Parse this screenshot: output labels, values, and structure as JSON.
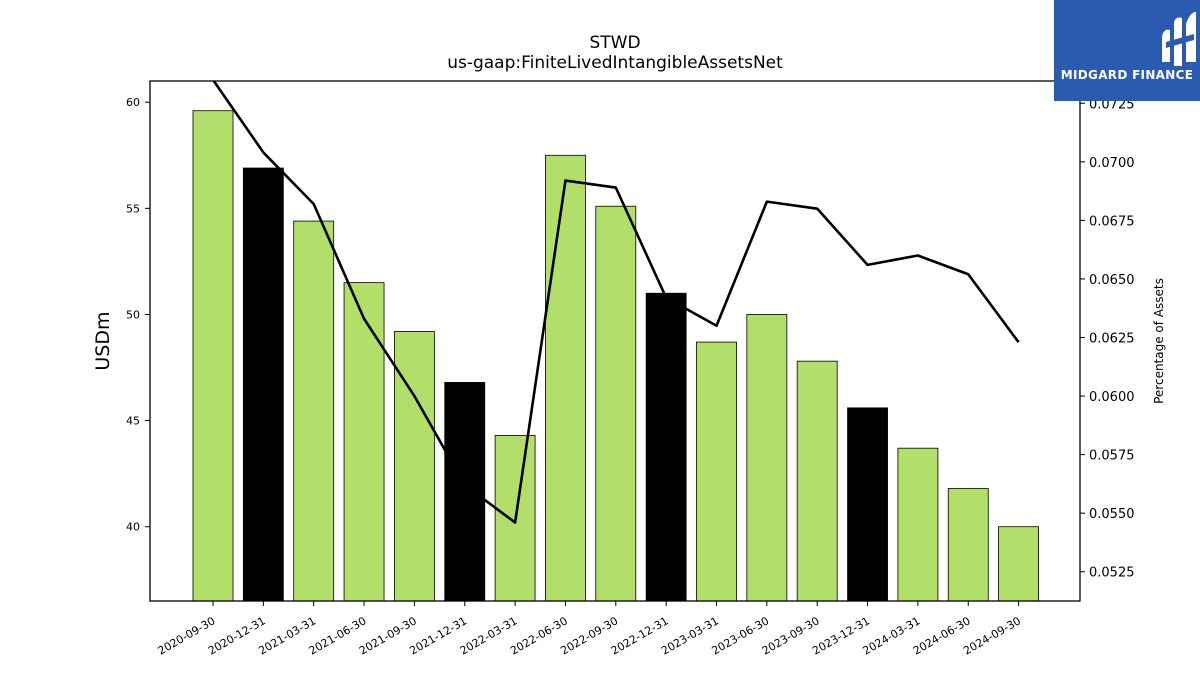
{
  "title": "STWD",
  "subtitle": "us-gaap:FiniteLivedIntangibleAssetsNet",
  "logo": {
    "text": "MIDGARD FINANCE",
    "icon": "midgard-logo-icon",
    "bg_color": "#2b5bb0"
  },
  "chart_data": {
    "type": "bar",
    "categories": [
      "2020-09-30",
      "2020-12-31",
      "2021-03-31",
      "2021-06-30",
      "2021-09-30",
      "2021-12-31",
      "2022-03-31",
      "2022-06-30",
      "2022-09-30",
      "2022-12-31",
      "2023-03-31",
      "2023-06-30",
      "2023-09-30",
      "2023-12-31",
      "2024-03-31",
      "2024-06-30",
      "2024-09-30"
    ],
    "series": [
      {
        "type": "bar",
        "axis": "left",
        "values": [
          59.6,
          56.9,
          54.4,
          51.5,
          49.2,
          46.8,
          44.3,
          57.5,
          55.1,
          51.0,
          48.7,
          50.0,
          47.8,
          45.6,
          43.7,
          41.8,
          40.0
        ],
        "colors": [
          "#b2df6a",
          "#000000",
          "#b2df6a",
          "#b2df6a",
          "#b2df6a",
          "#000000",
          "#b2df6a",
          "#b2df6a",
          "#b2df6a",
          "#000000",
          "#b2df6a",
          "#b2df6a",
          "#b2df6a",
          "#000000",
          "#b2df6a",
          "#b2df6a",
          "#b2df6a"
        ]
      },
      {
        "type": "line",
        "axis": "right",
        "color": "#000000",
        "values": [
          0.0735,
          0.0704,
          0.0682,
          0.0633,
          0.06,
          0.0562,
          0.0546,
          0.0692,
          0.0689,
          0.0642,
          0.063,
          0.0683,
          0.068,
          0.0656,
          0.066,
          0.0652,
          0.0623
        ]
      }
    ],
    "xlabel": "",
    "ylabel": "USDm",
    "y2label": "Percentage of Assets",
    "ylim": [
      36.5,
      61
    ],
    "y2lim": [
      0.05125,
      0.07345
    ],
    "yticks": [
      40,
      45,
      50,
      55,
      60
    ],
    "y2ticks": [
      "0.0525",
      "0.0550",
      "0.0575",
      "0.0600",
      "0.0625",
      "0.0650",
      "0.0675",
      "0.0700",
      "0.0725"
    ],
    "grid": false,
    "legend": "none"
  }
}
